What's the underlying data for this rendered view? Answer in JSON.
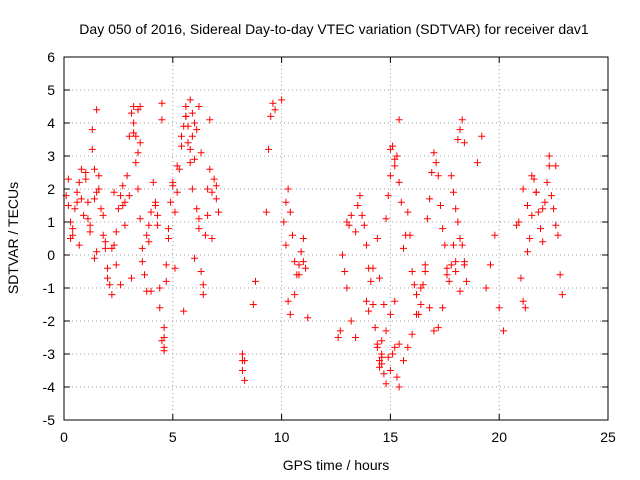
{
  "chart_data": {
    "type": "scatter",
    "title": "Day 050 of 2016, Sidereal Day-to-day VTEC variation (SDTVAR) for receiver dav1",
    "xlabel": "GPS time / hours",
    "ylabel": "SDTVAR / TECUs",
    "xlim": [
      0,
      25
    ],
    "ylim": [
      -5,
      6
    ],
    "xticks": [
      "0",
      "5",
      "10",
      "15",
      "20",
      "25"
    ],
    "yticks": [
      "-5",
      "-4",
      "-3",
      "-2",
      "-1",
      "0",
      "1",
      "2",
      "3",
      "4",
      "5",
      "6"
    ],
    "grid": true,
    "marker": "+",
    "color": "#ff0000",
    "series": [
      {
        "name": "dav1",
        "x": [
          0.1,
          0.2,
          0.3,
          0.4,
          0.5,
          0.6,
          0.7,
          0.8,
          0.9,
          1.0,
          1.1,
          1.2,
          1.3,
          1.4,
          1.5,
          1.6,
          1.7,
          1.8,
          1.9,
          2.0,
          2.1,
          2.2,
          2.3,
          2.4,
          2.5,
          2.6,
          2.7,
          2.8,
          2.9,
          3.0,
          3.1,
          3.2,
          3.3,
          3.4,
          3.5,
          3.6,
          3.7,
          3.8,
          3.9,
          4.0,
          4.1,
          4.2,
          4.3,
          4.4,
          4.5,
          4.6,
          4.7,
          4.8,
          4.9,
          5.0,
          5.1,
          5.2,
          5.3,
          5.4,
          5.5,
          5.6,
          5.7,
          5.8,
          5.9,
          6.0,
          6.1,
          6.2,
          6.3,
          6.4,
          6.5,
          6.6,
          6.7,
          6.8,
          6.9,
          7.0,
          7.1,
          0.2,
          0.4,
          0.6,
          0.8,
          1.0,
          1.2,
          1.4,
          1.6,
          1.8,
          2.0,
          2.2,
          2.4,
          2.6,
          2.8,
          3.0,
          3.2,
          3.4,
          3.6,
          3.8,
          4.0,
          4.2,
          4.4,
          4.6,
          4.8,
          5.0,
          5.2,
          5.4,
          5.6,
          5.8,
          6.0,
          6.2,
          6.4,
          6.6,
          6.8,
          7.0,
          0.3,
          0.7,
          1.1,
          1.5,
          1.9,
          2.3,
          2.7,
          3.1,
          3.5,
          3.9,
          4.3,
          4.7,
          5.1,
          5.5,
          5.9,
          6.3,
          6.7,
          1.3,
          1.4,
          1.5,
          3.2,
          3.3,
          3.4,
          3.5,
          5.6,
          5.7,
          5.8,
          5.9,
          6.0,
          6.1,
          6.2,
          4.5,
          4.5,
          4.6,
          4.6,
          8.2,
          8.2,
          8.2,
          8.3,
          8.3,
          8.7,
          8.8,
          9.3,
          9.4,
          9.5,
          9.6,
          9.7,
          10.0,
          10.1,
          10.2,
          10.3,
          10.4,
          10.5,
          10.6,
          10.7,
          10.8,
          10.9,
          11.0,
          10.2,
          10.3,
          10.4,
          10.6,
          10.8,
          11.0,
          11.1,
          11.2,
          12.6,
          12.7,
          12.8,
          12.9,
          13.0,
          13.2,
          13.4,
          13.5,
          13.6,
          13.7,
          13.8,
          13.9,
          14.0,
          14.1,
          14.2,
          14.3,
          14.4,
          14.5,
          14.6,
          14.7,
          14.8,
          14.9,
          15.0,
          15.1,
          15.2,
          15.3,
          15.4,
          15.5,
          15.6,
          15.7,
          15.8,
          15.9,
          16.0,
          16.1,
          16.2,
          16.3,
          16.4,
          16.5,
          16.6,
          16.7,
          16.8,
          16.9,
          17.0,
          17.1,
          17.2,
          17.3,
          17.4,
          17.5,
          17.6,
          17.7,
          17.8,
          17.9,
          18.0,
          18.1,
          18.2,
          18.3,
          18.4,
          18.5,
          13.9,
          14.0,
          14.2,
          14.4,
          14.6,
          14.8,
          15.0,
          15.2,
          15.4,
          15.6,
          15.8,
          16.0,
          16.2,
          16.4,
          16.6,
          16.8,
          17.0,
          17.2,
          17.4,
          17.6,
          17.8,
          18.0,
          18.2,
          18.4,
          14.4,
          14.5,
          14.6,
          14.7,
          14.8,
          14.9,
          15.0,
          15.1,
          15.2,
          15.3,
          15.4,
          14.5,
          14.6,
          15.0,
          15.2,
          15.4,
          13.0,
          13.1,
          13.2,
          13.4,
          17.9,
          18.0,
          18.1,
          18.2,
          18.3,
          18.4,
          19.0,
          19.2,
          19.4,
          19.6,
          19.8,
          20.0,
          20.2,
          20.8,
          20.9,
          21.0,
          21.1,
          21.2,
          21.3,
          21.4,
          21.5,
          21.6,
          21.7,
          21.8,
          21.9,
          22.0,
          22.1,
          22.2,
          22.3,
          22.4,
          22.5,
          22.6,
          22.7,
          22.8,
          22.9,
          21.1,
          21.3,
          21.5,
          21.7,
          22.0,
          22.3,
          22.6
        ],
        "y": [
          1.8,
          1.5,
          1.0,
          0.6,
          1.4,
          1.9,
          2.2,
          1.7,
          1.2,
          2.5,
          1.6,
          0.9,
          3.8,
          2.6,
          1.9,
          2.4,
          1.4,
          0.6,
          0.2,
          -0.4,
          -0.9,
          -1.2,
          0.3,
          0.7,
          1.4,
          1.8,
          2.1,
          1.6,
          2.4,
          3.6,
          4.3,
          3.7,
          2.8,
          2.0,
          1.1,
          0.2,
          -0.6,
          -1.1,
          0.4,
          1.3,
          2.2,
          1.6,
          0.9,
          -1.6,
          -2.6,
          -2.9,
          -0.8,
          0.5,
          1.6,
          2.1,
          1.3,
          1.9,
          2.6,
          3.3,
          3.9,
          4.2,
          3.4,
          2.8,
          3.6,
          2.9,
          1.4,
          0.8,
          -0.5,
          -1.2,
          0.6,
          1.2,
          2.6,
          1.9,
          2.3,
          1.7,
          1.3,
          2.3,
          0.8,
          1.6,
          2.6,
          2.3,
          0.7,
          1.7,
          2.0,
          1.2,
          -0.7,
          0.2,
          -0.3,
          -0.9,
          0.9,
          1.8,
          4.5,
          3.1,
          -0.2,
          0.6,
          -1.1,
          1.5,
          -1.0,
          -2.2,
          0.8,
          2.2,
          2.7,
          3.6,
          4.5,
          3.2,
          -0.1,
          1.1,
          -0.9,
          2.0,
          0.5,
          2.1,
          0.5,
          0.3,
          1.1,
          0.1,
          0.4,
          1.9,
          1.5,
          -0.7,
          3.4,
          0.9,
          1.2,
          -0.3,
          -0.4,
          -1.7,
          2.0,
          3.1,
          4.1,
          3.2,
          -0.1,
          4.4,
          4.0,
          3.6,
          4.4,
          4.5,
          4.2,
          3.9,
          4.7,
          4.3,
          4.0,
          3.8,
          4.5,
          4.1,
          4.6,
          -2.5,
          -2.8,
          -3.0,
          -3.2,
          -3.5,
          -3.8,
          -3.2,
          -1.5,
          -0.8,
          1.3,
          3.2,
          4.2,
          4.6,
          4.4,
          4.7,
          1.0,
          1.6,
          2.0,
          1.3,
          0.6,
          -0.2,
          -0.6,
          -0.3,
          0.1,
          0.5,
          0.3,
          -1.4,
          -1.8,
          -1.2,
          -0.6,
          -0.2,
          -0.4,
          -1.9,
          -2.5,
          -2.3,
          0.0,
          -0.5,
          -1.0,
          -2.0,
          -2.5,
          1.5,
          1.8,
          1.2,
          0.9,
          0.3,
          -0.4,
          -0.8,
          -1.5,
          -2.2,
          -2.8,
          -3.2,
          -2.6,
          -1.5,
          1.1,
          1.8,
          2.4,
          3.3,
          2.7,
          3.0,
          2.2,
          1.6,
          0.2,
          0.6,
          1.3,
          0.6,
          -0.5,
          -0.9,
          -1.2,
          -1.8,
          -1.5,
          -0.9,
          -0.3,
          1.1,
          1.7,
          2.5,
          3.1,
          2.8,
          2.4,
          1.5,
          0.8,
          0.3,
          -0.4,
          -0.8,
          2.4,
          1.9,
          1.4,
          1.0,
          0.5,
          0.3,
          -0.2,
          -0.8,
          -1.4,
          -1.7,
          -0.4,
          -2.7,
          -3.0,
          -2.3,
          -1.8,
          -1.4,
          -2.7,
          -3.2,
          -2.8,
          -2.4,
          -1.8,
          -1.0,
          -0.5,
          -1.6,
          -2.3,
          -2.2,
          -1.6,
          -0.6,
          -0.3,
          -0.5,
          -1.1,
          -0.3,
          0.5,
          -0.7,
          -3.3,
          -3.6,
          -3.9,
          -3.1,
          -3.5,
          -3.0,
          -2.8,
          -3.7,
          -4.0,
          -3.4,
          -3.1,
          3.2,
          2.9,
          4.1,
          1.0,
          0.9,
          1.2,
          0.7,
          0.3,
          -0.2,
          3.5,
          3.8,
          4.1,
          3.4,
          2.8,
          3.6,
          -1.0,
          -0.3,
          0.6,
          -1.6,
          -2.3,
          0.9,
          1.0,
          -0.7,
          -1.4,
          -1.6,
          0.1,
          0.5,
          1.2,
          2.3,
          1.9,
          1.3,
          0.8,
          0.4,
          1.6,
          2.2,
          2.7,
          1.8,
          1.4,
          0.9,
          0.6,
          -0.6,
          -1.2,
          2.0,
          1.5,
          2.4,
          1.9,
          1.4,
          3.0,
          2.7
        ]
      }
    ]
  }
}
